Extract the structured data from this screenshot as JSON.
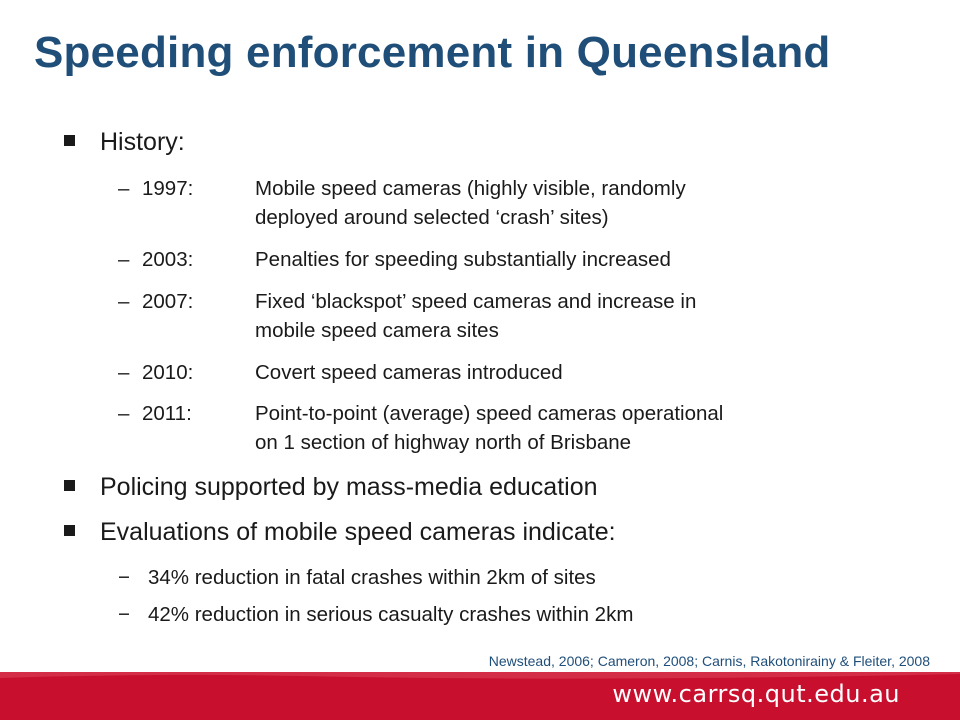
{
  "title": "Speeding enforcement in Queensland",
  "history": {
    "heading": "History:",
    "items": [
      {
        "dash": "–",
        "year": "1997:",
        "lines": [
          "Mobile speed cameras (highly visible, randomly",
          "deployed around selected ‘crash’ sites)"
        ]
      },
      {
        "dash": "–",
        "year": "2003:",
        "lines": [
          "Penalties for speeding substantially increased"
        ]
      },
      {
        "dash": "–",
        "year": "2007:",
        "lines": [
          "Fixed ‘blackspot’ speed cameras and increase in",
          "mobile speed camera sites"
        ]
      },
      {
        "dash": "–",
        "year": "2010:",
        "lines": [
          "Covert speed cameras introduced"
        ]
      },
      {
        "dash": "–",
        "year": "2011:",
        "lines": [
          "Point-to-point (average) speed cameras operational",
          "on 1 section of highway north of Brisbane"
        ]
      }
    ]
  },
  "policing": "Policing supported by mass-media education",
  "evaluations": {
    "heading": "Evaluations of mobile speed cameras indicate:",
    "items": [
      {
        "dash": "−",
        "text": "34% reduction in fatal crashes within 2km of sites"
      },
      {
        "dash": "−",
        "text": "42% reduction in serious casualty crashes within 2km"
      }
    ]
  },
  "citation": "Newstead, 2006; Cameron, 2008; Carnis, Rakotonirainy & Fleiter, 2008",
  "footer": {
    "url": "www.carrsq.qut.edu.au",
    "color": "#c8102e"
  }
}
